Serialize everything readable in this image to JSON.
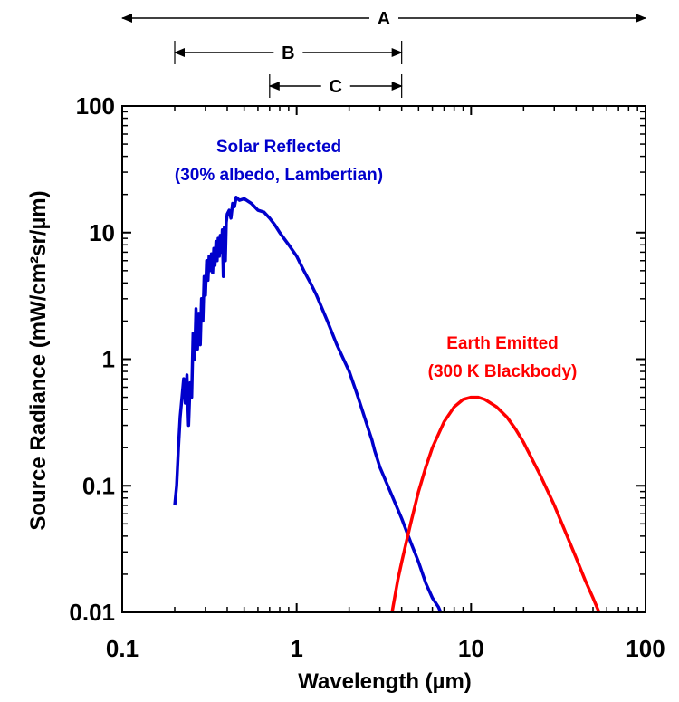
{
  "chart_data": {
    "type": "line",
    "xlabel": "Wavelength (µm)",
    "ylabel": "Source Radiance (mW/cm²sr/µm)",
    "x_scale": "log",
    "y_scale": "log",
    "xlim": [
      0.1,
      100
    ],
    "ylim": [
      0.01,
      100
    ],
    "x_ticks": [
      "0.1",
      "1",
      "10",
      "100"
    ],
    "y_ticks": [
      "0.01",
      "0.1",
      "1",
      "10",
      "100"
    ],
    "grid": false,
    "series": [
      {
        "color": "#0000cc",
        "x": [
          0.2,
          0.205,
          0.21,
          0.215,
          0.22,
          0.225,
          0.23,
          0.235,
          0.24,
          0.245,
          0.25,
          0.255,
          0.26,
          0.265,
          0.27,
          0.275,
          0.28,
          0.285,
          0.29,
          0.295,
          0.3,
          0.305,
          0.31,
          0.315,
          0.32,
          0.325,
          0.33,
          0.335,
          0.34,
          0.345,
          0.35,
          0.355,
          0.36,
          0.365,
          0.37,
          0.375,
          0.38,
          0.385,
          0.39,
          0.395,
          0.4,
          0.41,
          0.42,
          0.43,
          0.44,
          0.45,
          0.47,
          0.5,
          0.55,
          0.6,
          0.65,
          0.7,
          0.75,
          0.8,
          0.9,
          1.0,
          1.1,
          1.2,
          1.3,
          1.5,
          1.7,
          2.0,
          2.2,
          2.4,
          2.6,
          2.7,
          2.8,
          3.0,
          3.5,
          4.0,
          4.5,
          5.0,
          5.5,
          6.0,
          6.5,
          6.8
        ],
        "values": [
          0.07,
          0.1,
          0.2,
          0.35,
          0.5,
          0.7,
          0.45,
          0.75,
          0.3,
          0.65,
          0.5,
          1.6,
          1.0,
          2.5,
          1.2,
          2.3,
          1.3,
          3.0,
          2.0,
          4.5,
          3.2,
          6.0,
          4.2,
          6.5,
          5.0,
          6.8,
          4.8,
          7.5,
          5.5,
          8.5,
          6.0,
          9.0,
          6.5,
          9.5,
          7.0,
          10.5,
          4.5,
          11.0,
          6.0,
          12.0,
          14.0,
          15.0,
          13.0,
          17.0,
          16.0,
          19.0,
          18.0,
          18.5,
          17.0,
          15.0,
          14.5,
          13.0,
          11.5,
          10.0,
          8.0,
          6.5,
          5.0,
          4.0,
          3.2,
          2.0,
          1.3,
          0.8,
          0.55,
          0.38,
          0.27,
          0.23,
          0.19,
          0.14,
          0.085,
          0.055,
          0.036,
          0.025,
          0.017,
          0.013,
          0.011,
          0.0095
        ]
      },
      {
        "color": "#ff0000",
        "x": [
          3.5,
          3.8,
          4.0,
          4.5,
          5.0,
          5.5,
          6.0,
          7.0,
          8.0,
          9.0,
          10.0,
          11.0,
          12.0,
          14.0,
          16.0,
          18.0,
          20.0,
          25.0,
          30.0,
          35.0,
          40.0,
          45.0,
          50.0,
          55.0
        ],
        "values": [
          0.0095,
          0.018,
          0.025,
          0.05,
          0.09,
          0.14,
          0.2,
          0.32,
          0.42,
          0.48,
          0.5,
          0.5,
          0.48,
          0.42,
          0.35,
          0.28,
          0.22,
          0.12,
          0.07,
          0.042,
          0.027,
          0.018,
          0.013,
          0.0095
        ]
      }
    ],
    "annotations": [
      {
        "lines": [
          "Solar Reflected",
          "(30% albedo, Lambertian)"
        ],
        "color": "#0000cc"
      },
      {
        "lines": [
          "Earth Emitted",
          "(300 K Blackbody)"
        ],
        "color": "#ff0000"
      }
    ],
    "bands": [
      {
        "label": "A",
        "range": [
          0.1,
          100
        ]
      },
      {
        "label": "B",
        "range": [
          0.2,
          4.0
        ]
      },
      {
        "label": "C",
        "range": [
          0.7,
          4.0
        ]
      }
    ]
  }
}
